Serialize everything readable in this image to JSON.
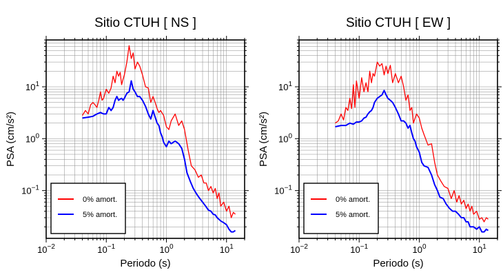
{
  "chart_data": [
    {
      "type": "line",
      "title": "Sitio CTUH [ NS ]",
      "xlabel": "Periodo (s)",
      "ylabel": "PSA (cm/s²)",
      "xscale": "log",
      "yscale": "log",
      "xlim": [
        0.01,
        20
      ],
      "ylim": [
        0.012,
        80
      ],
      "grid": true,
      "legend_position": "bottom-left",
      "xticks": [
        {
          "value": 0.01,
          "base": "10",
          "exp": "−2"
        },
        {
          "value": 0.1,
          "base": "10",
          "exp": "−1"
        },
        {
          "value": 1,
          "base": "10",
          "exp": "0"
        },
        {
          "value": 10,
          "base": "10",
          "exp": "1"
        }
      ],
      "yticks": [
        {
          "value": 0.1,
          "base": "10",
          "exp": "−1"
        },
        {
          "value": 1,
          "base": "10",
          "exp": "0"
        },
        {
          "value": 10,
          "base": "10",
          "exp": "1"
        }
      ],
      "series": [
        {
          "name": "0% amort.",
          "color": "#ff0000",
          "x": [
            0.04,
            0.045,
            0.05,
            0.055,
            0.06,
            0.065,
            0.07,
            0.075,
            0.08,
            0.085,
            0.09,
            0.1,
            0.11,
            0.12,
            0.13,
            0.14,
            0.15,
            0.16,
            0.17,
            0.18,
            0.19,
            0.2,
            0.22,
            0.24,
            0.26,
            0.28,
            0.3,
            0.33,
            0.36,
            0.4,
            0.45,
            0.5,
            0.55,
            0.6,
            0.65,
            0.7,
            0.75,
            0.8,
            0.9,
            1.0,
            1.1,
            1.2,
            1.4,
            1.6,
            1.8,
            2.0,
            2.3,
            2.6,
            3.0,
            3.4,
            3.8,
            4.2,
            4.6,
            5.0,
            5.5,
            6.0,
            6.5,
            7.0,
            7.5,
            8.0,
            9.0,
            10.0,
            11.0,
            12.0,
            13.0,
            14.0
          ],
          "y": [
            2.8,
            3.5,
            3.0,
            4.5,
            5.0,
            4.5,
            4.0,
            5.5,
            8.0,
            5.5,
            6.0,
            9.0,
            7.5,
            9.5,
            16.0,
            12.0,
            20.0,
            16.0,
            19.0,
            11.0,
            14.0,
            17.0,
            30.0,
            62.0,
            35.0,
            45.0,
            22.0,
            30.0,
            25.0,
            17.0,
            10.0,
            9.5,
            5.0,
            6.5,
            5.0,
            3.8,
            3.2,
            3.5,
            2.8,
            1.7,
            1.5,
            2.2,
            3.0,
            1.8,
            2.2,
            1.5,
            0.6,
            0.3,
            0.25,
            0.18,
            0.2,
            0.14,
            0.14,
            0.1,
            0.12,
            0.09,
            0.11,
            0.07,
            0.09,
            0.05,
            0.06,
            0.04,
            0.05,
            0.03,
            0.038,
            0.035
          ]
        },
        {
          "name": "5% amort.",
          "color": "#0000ff",
          "x": [
            0.04,
            0.05,
            0.06,
            0.07,
            0.08,
            0.09,
            0.1,
            0.11,
            0.12,
            0.13,
            0.14,
            0.15,
            0.16,
            0.17,
            0.18,
            0.19,
            0.2,
            0.22,
            0.24,
            0.26,
            0.28,
            0.3,
            0.33,
            0.36,
            0.4,
            0.45,
            0.5,
            0.55,
            0.6,
            0.65,
            0.7,
            0.75,
            0.8,
            0.85,
            0.9,
            1.0,
            1.1,
            1.2,
            1.4,
            1.6,
            1.8,
            2.0,
            2.2,
            2.5,
            2.8,
            3.2,
            3.6,
            4.0,
            4.5,
            5.0,
            5.5,
            6.0,
            6.5,
            7.0,
            8.0,
            9.0,
            10.0,
            11.0,
            12.0,
            13.0,
            14.0
          ],
          "y": [
            2.5,
            2.6,
            2.7,
            3.0,
            3.2,
            3.0,
            3.0,
            4.0,
            3.5,
            4.0,
            5.5,
            6.5,
            5.5,
            5.8,
            6.0,
            5.5,
            6.0,
            7.5,
            8.0,
            13.0,
            9.0,
            8.0,
            6.5,
            6.5,
            5.5,
            4.2,
            3.0,
            2.4,
            3.5,
            2.6,
            2.0,
            1.8,
            1.3,
            1.1,
            0.85,
            0.7,
            0.9,
            0.8,
            0.9,
            0.8,
            0.65,
            0.4,
            0.22,
            0.15,
            0.11,
            0.085,
            0.07,
            0.06,
            0.05,
            0.042,
            0.04,
            0.035,
            0.034,
            0.03,
            0.026,
            0.024,
            0.022,
            0.018,
            0.016,
            0.016,
            0.017
          ]
        }
      ]
    },
    {
      "type": "line",
      "title": "Sitio CTUH [ EW ]",
      "xlabel": "Periodo (s)",
      "ylabel": "PSA (cm/s²)",
      "xscale": "log",
      "yscale": "log",
      "xlim": [
        0.01,
        20
      ],
      "ylim": [
        0.012,
        80
      ],
      "grid": true,
      "legend_position": "bottom-left",
      "xticks": [
        {
          "value": 0.01,
          "base": "10",
          "exp": "−2"
        },
        {
          "value": 0.1,
          "base": "10",
          "exp": "−1"
        },
        {
          "value": 1,
          "base": "10",
          "exp": "0"
        },
        {
          "value": 10,
          "base": "10",
          "exp": "1"
        }
      ],
      "yticks": [
        {
          "value": 0.1,
          "base": "10",
          "exp": "−1"
        },
        {
          "value": 1,
          "base": "10",
          "exp": "0"
        },
        {
          "value": 10,
          "base": "10",
          "exp": "1"
        }
      ],
      "series": [
        {
          "name": "0% amort.",
          "color": "#ff0000",
          "x": [
            0.04,
            0.045,
            0.05,
            0.055,
            0.06,
            0.065,
            0.07,
            0.075,
            0.08,
            0.085,
            0.09,
            0.1,
            0.11,
            0.12,
            0.13,
            0.14,
            0.15,
            0.16,
            0.17,
            0.18,
            0.19,
            0.2,
            0.22,
            0.24,
            0.26,
            0.28,
            0.3,
            0.33,
            0.36,
            0.4,
            0.45,
            0.5,
            0.55,
            0.6,
            0.65,
            0.7,
            0.75,
            0.8,
            0.9,
            1.0,
            1.1,
            1.2,
            1.4,
            1.6,
            1.8,
            2.0,
            2.3,
            2.6,
            3.0,
            3.4,
            3.8,
            4.2,
            4.6,
            5.0,
            5.5,
            6.0,
            6.5,
            7.0,
            7.5,
            8.0,
            9.0,
            10.0,
            11.0,
            12.0,
            13.0,
            14.0
          ],
          "y": [
            2.0,
            2.2,
            3.0,
            2.3,
            4.0,
            3.5,
            6.0,
            3.8,
            11.0,
            4.0,
            13.0,
            6.0,
            15.0,
            8.0,
            12.0,
            8.0,
            20.0,
            12.0,
            18.0,
            16.0,
            22.0,
            30.0,
            25.0,
            28.0,
            17.0,
            25.0,
            18.0,
            26.0,
            12.0,
            18.0,
            12.0,
            16.0,
            10.0,
            5.5,
            7.0,
            3.5,
            4.0,
            2.0,
            3.0,
            2.5,
            1.6,
            1.2,
            0.75,
            0.8,
            0.35,
            0.2,
            0.15,
            0.12,
            0.11,
            0.07,
            0.1,
            0.06,
            0.08,
            0.055,
            0.065,
            0.045,
            0.055,
            0.04,
            0.05,
            0.035,
            0.04,
            0.028,
            0.03,
            0.025,
            0.03,
            0.028
          ]
        },
        {
          "name": "5% amort.",
          "color": "#0000ff",
          "x": [
            0.04,
            0.05,
            0.06,
            0.07,
            0.08,
            0.09,
            0.1,
            0.11,
            0.12,
            0.13,
            0.14,
            0.15,
            0.16,
            0.17,
            0.18,
            0.19,
            0.2,
            0.22,
            0.24,
            0.26,
            0.28,
            0.3,
            0.33,
            0.36,
            0.4,
            0.45,
            0.5,
            0.55,
            0.6,
            0.65,
            0.7,
            0.75,
            0.8,
            0.85,
            0.9,
            1.0,
            1.1,
            1.2,
            1.4,
            1.6,
            1.8,
            2.0,
            2.2,
            2.5,
            2.8,
            3.2,
            3.6,
            4.0,
            4.5,
            5.0,
            5.5,
            6.0,
            6.5,
            7.0,
            8.0,
            9.0,
            10.0,
            11.0,
            12.0,
            13.0,
            14.0
          ],
          "y": [
            1.7,
            1.8,
            1.8,
            2.0,
            1.9,
            2.1,
            2.1,
            2.2,
            2.5,
            2.6,
            3.0,
            3.3,
            3.5,
            4.0,
            5.0,
            5.5,
            6.0,
            6.5,
            7.0,
            8.5,
            7.0,
            6.0,
            5.5,
            5.0,
            4.0,
            3.0,
            2.2,
            2.2,
            2.0,
            1.6,
            1.8,
            1.3,
            1.0,
            0.9,
            0.7,
            0.55,
            0.35,
            0.3,
            0.28,
            0.2,
            0.13,
            0.1,
            0.075,
            0.07,
            0.055,
            0.045,
            0.04,
            0.04,
            0.035,
            0.03,
            0.03,
            0.025,
            0.025,
            0.02,
            0.02,
            0.018,
            0.02,
            0.016,
            0.016,
            0.018,
            0.017
          ]
        }
      ]
    }
  ]
}
